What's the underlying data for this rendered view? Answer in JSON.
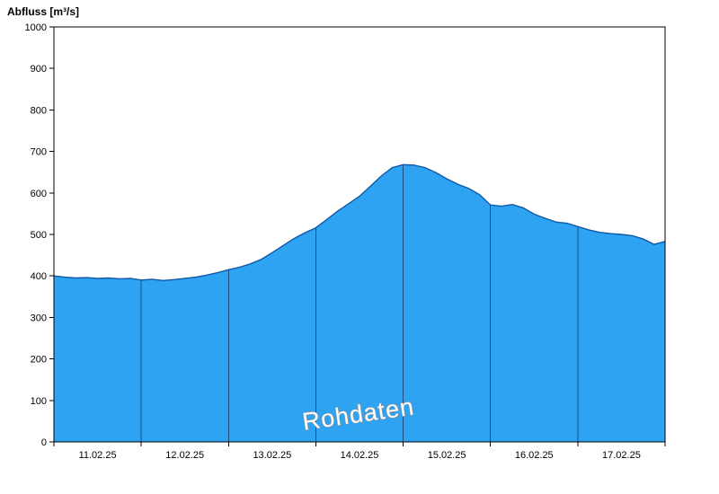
{
  "page": {
    "title": "Abfluss [m³/s]"
  },
  "chart_data": {
    "type": "area",
    "title": "Abfluss [m³/s]",
    "ylabel": "Abfluss [m³/s]",
    "watermark": "Rohdaten",
    "x_tick_labels": [
      "11.02.25",
      "12.02.25",
      "13.02.25",
      "14.02.25",
      "15.02.25",
      "16.02.25",
      "17.02.25"
    ],
    "x_total_days": 7,
    "ylim": [
      0,
      1000
    ],
    "y_tick_step": 100,
    "grid": "vertical-day-lines-clipped-to-area",
    "legend": "none",
    "series": [
      {
        "name": "Abfluss Rohdaten",
        "unit": "m³/s",
        "x_days": [
          0,
          0.125,
          0.25,
          0.375,
          0.5,
          0.625,
          0.75,
          0.875,
          1,
          1.125,
          1.25,
          1.375,
          1.5,
          1.625,
          1.75,
          1.875,
          2,
          2.125,
          2.25,
          2.375,
          2.5,
          2.625,
          2.75,
          2.875,
          3,
          3.125,
          3.25,
          3.375,
          3.5,
          3.625,
          3.75,
          3.875,
          4,
          4.125,
          4.25,
          4.375,
          4.5,
          4.625,
          4.75,
          4.875,
          5,
          5.125,
          5.25,
          5.375,
          5.5,
          5.625,
          5.75,
          5.875,
          6,
          6.125,
          6.25,
          6.375,
          6.5,
          6.625,
          6.75,
          6.875,
          7
        ],
        "values": [
          400,
          397,
          395,
          396,
          394,
          395,
          393,
          394,
          390,
          392,
          389,
          391,
          394,
          397,
          402,
          408,
          415,
          421,
          429,
          440,
          456,
          473,
          490,
          504,
          516,
          536,
          556,
          574,
          592,
          616,
          641,
          661,
          668,
          667,
          661,
          649,
          634,
          621,
          611,
          596,
          571,
          568,
          572,
          564,
          549,
          539,
          530,
          527,
          519,
          511,
          505,
          502,
          500,
          497,
          489,
          476,
          483
        ]
      }
    ],
    "colors": {
      "fill": "#2EA3F2",
      "line": "#1157A6",
      "day_line": "#1D4E7E",
      "axis": "#000000",
      "watermark_fill": "#FFFFFF",
      "watermark_stroke": "#989898"
    }
  }
}
